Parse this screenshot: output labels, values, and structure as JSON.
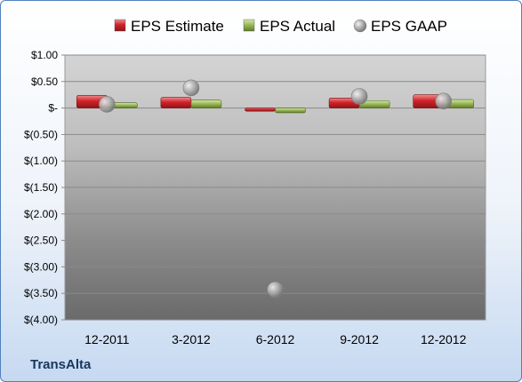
{
  "company": "TransAlta",
  "chart_data": {
    "type": "bar",
    "title": "",
    "xlabel": "",
    "ylabel": "",
    "categories": [
      "12-2011",
      "3-2012",
      "6-2012",
      "9-2012",
      "12-2012"
    ],
    "series": [
      {
        "name": "EPS Estimate",
        "type": "bar",
        "color": "#c0282d",
        "values": [
          0.24,
          0.2,
          -0.06,
          0.19,
          0.25
        ]
      },
      {
        "name": "EPS Actual",
        "type": "bar",
        "color": "#9bbb59",
        "values": [
          0.1,
          0.15,
          -0.09,
          0.14,
          0.16
        ]
      },
      {
        "name": "EPS GAAP",
        "type": "scatter",
        "color": "#a6a6a6",
        "values": [
          0.07,
          0.38,
          -3.43,
          0.22,
          0.13
        ]
      }
    ],
    "ylim": [
      -4,
      1
    ],
    "yticks": [
      1.0,
      0.5,
      0.0,
      -0.5,
      -1.0,
      -1.5,
      -2.0,
      -2.5,
      -3.0,
      -3.5,
      -4.0
    ],
    "ytick_labels": [
      "$1.00",
      "$0.50",
      "$-",
      "$(0.50)",
      "$(1.00)",
      "$(1.50)",
      "$(2.00)",
      "$(2.50)",
      "$(3.00)",
      "$(3.50)",
      "$(4.00)"
    ],
    "grid": true,
    "legend_position": "top"
  }
}
